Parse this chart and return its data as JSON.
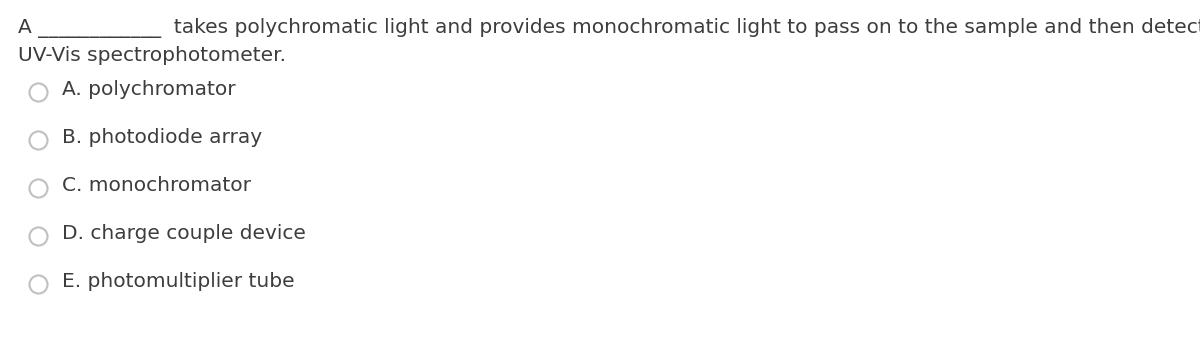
{
  "background_color": "#ffffff",
  "question_line1": "A ____________  takes polychromatic light and provides monochromatic light to pass on to the sample and then detector in a",
  "question_line2": "UV-Vis spectrophotometer.",
  "text_color": "#3d3d3d",
  "options": [
    "A. polychromator",
    "B. photodiode array",
    "C. monochromator",
    "D. charge couple device",
    "E. photomultiplier tube"
  ],
  "circle_color": "#c0c0c0",
  "font_size_question": 14.5,
  "font_size_options": 14.5,
  "fig_width": 12.0,
  "fig_height": 3.38,
  "dpi": 100
}
